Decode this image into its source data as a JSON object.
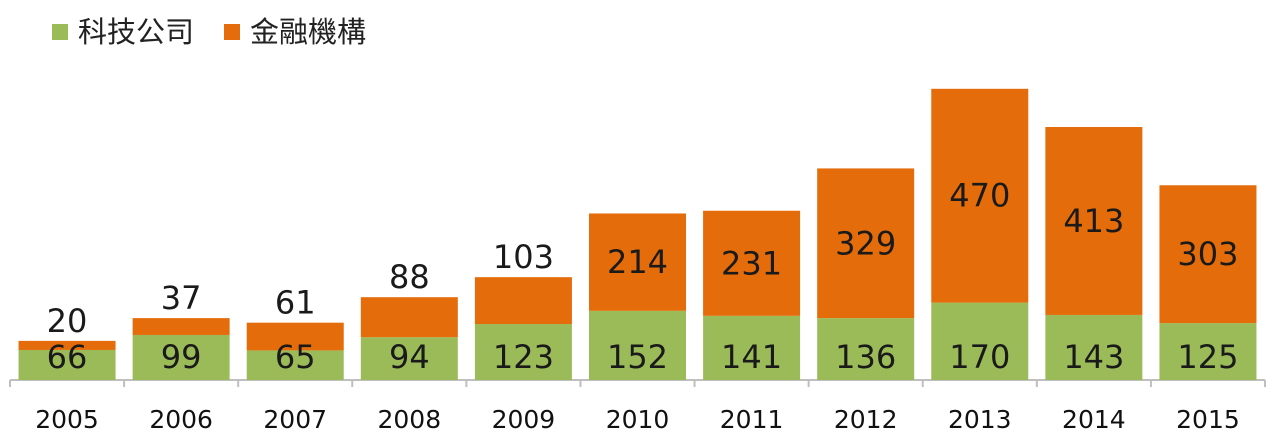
{
  "chart_data": {
    "type": "bar",
    "stacked": true,
    "categories": [
      "2005",
      "2006",
      "2007",
      "2008",
      "2009",
      "2010",
      "2011",
      "2012",
      "2013",
      "2014",
      "2015"
    ],
    "series": [
      {
        "name": "科技公司",
        "color": "#9bbb59",
        "values": [
          66,
          99,
          65,
          94,
          123,
          152,
          141,
          136,
          170,
          143,
          125
        ]
      },
      {
        "name": "金融機構",
        "color": "#e46c0a",
        "values": [
          20,
          37,
          61,
          88,
          103,
          214,
          231,
          329,
          470,
          413,
          303
        ]
      }
    ],
    "legend": "top-left",
    "grid": false
  }
}
